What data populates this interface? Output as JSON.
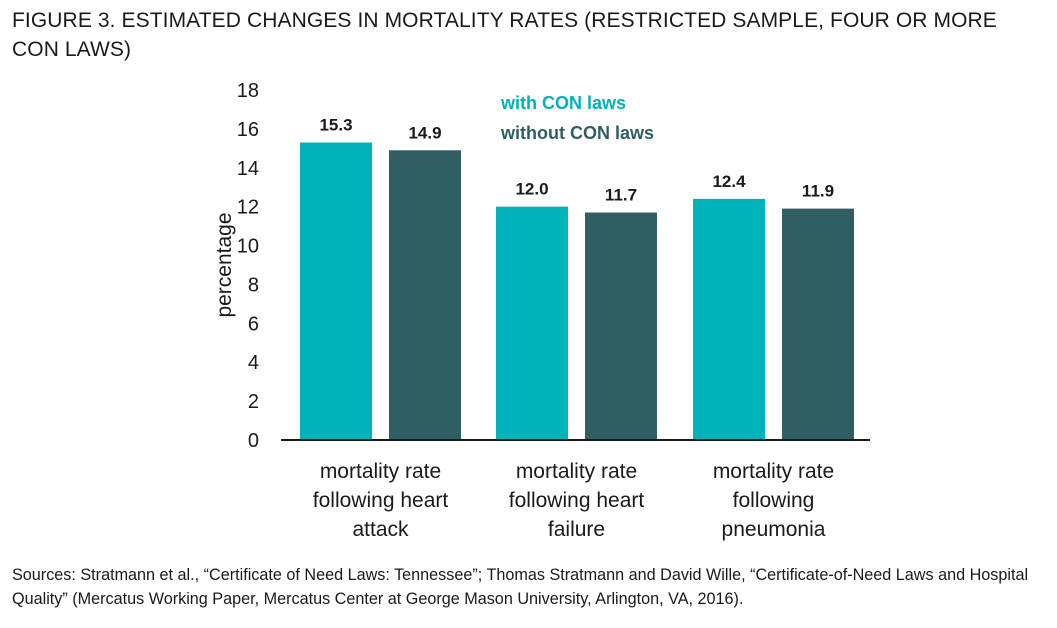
{
  "title": "FIGURE 3. ESTIMATED CHANGES IN MORTALITY RATES (RESTRICTED SAMPLE, FOUR OR MORE CON LAWS)",
  "source": "Sources: Stratmann et al., “Certificate of Need Laws: Tennessee”; Thomas Stratmann and David Wille, “Certificate-of-Need Laws and Hospital Quality” (Mercatus Working Paper, Mercatus Center at George Mason University, Arlington, VA, 2016).",
  "chart_data": {
    "type": "bar",
    "ylabel": "percentage",
    "xlabel": "",
    "ylim": [
      0,
      18
    ],
    "yticks": [
      0,
      2,
      4,
      6,
      8,
      10,
      12,
      14,
      16,
      18
    ],
    "grid": false,
    "legend_position": "top-right",
    "categories": [
      [
        "mortality rate",
        "following heart",
        "attack"
      ],
      [
        "mortality rate",
        "following heart",
        "failure"
      ],
      [
        "mortality rate",
        "following",
        "pneumonia"
      ]
    ],
    "series": [
      {
        "name": "with CON laws",
        "color": "#00b2b9",
        "values": [
          15.3,
          12.0,
          12.4
        ],
        "labels": [
          "15.3",
          "12.0",
          "12.4"
        ]
      },
      {
        "name": "without CON laws",
        "color": "#2f5f63",
        "values": [
          14.9,
          11.7,
          11.9
        ],
        "labels": [
          "14.9",
          "11.7",
          "11.9"
        ]
      }
    ]
  }
}
